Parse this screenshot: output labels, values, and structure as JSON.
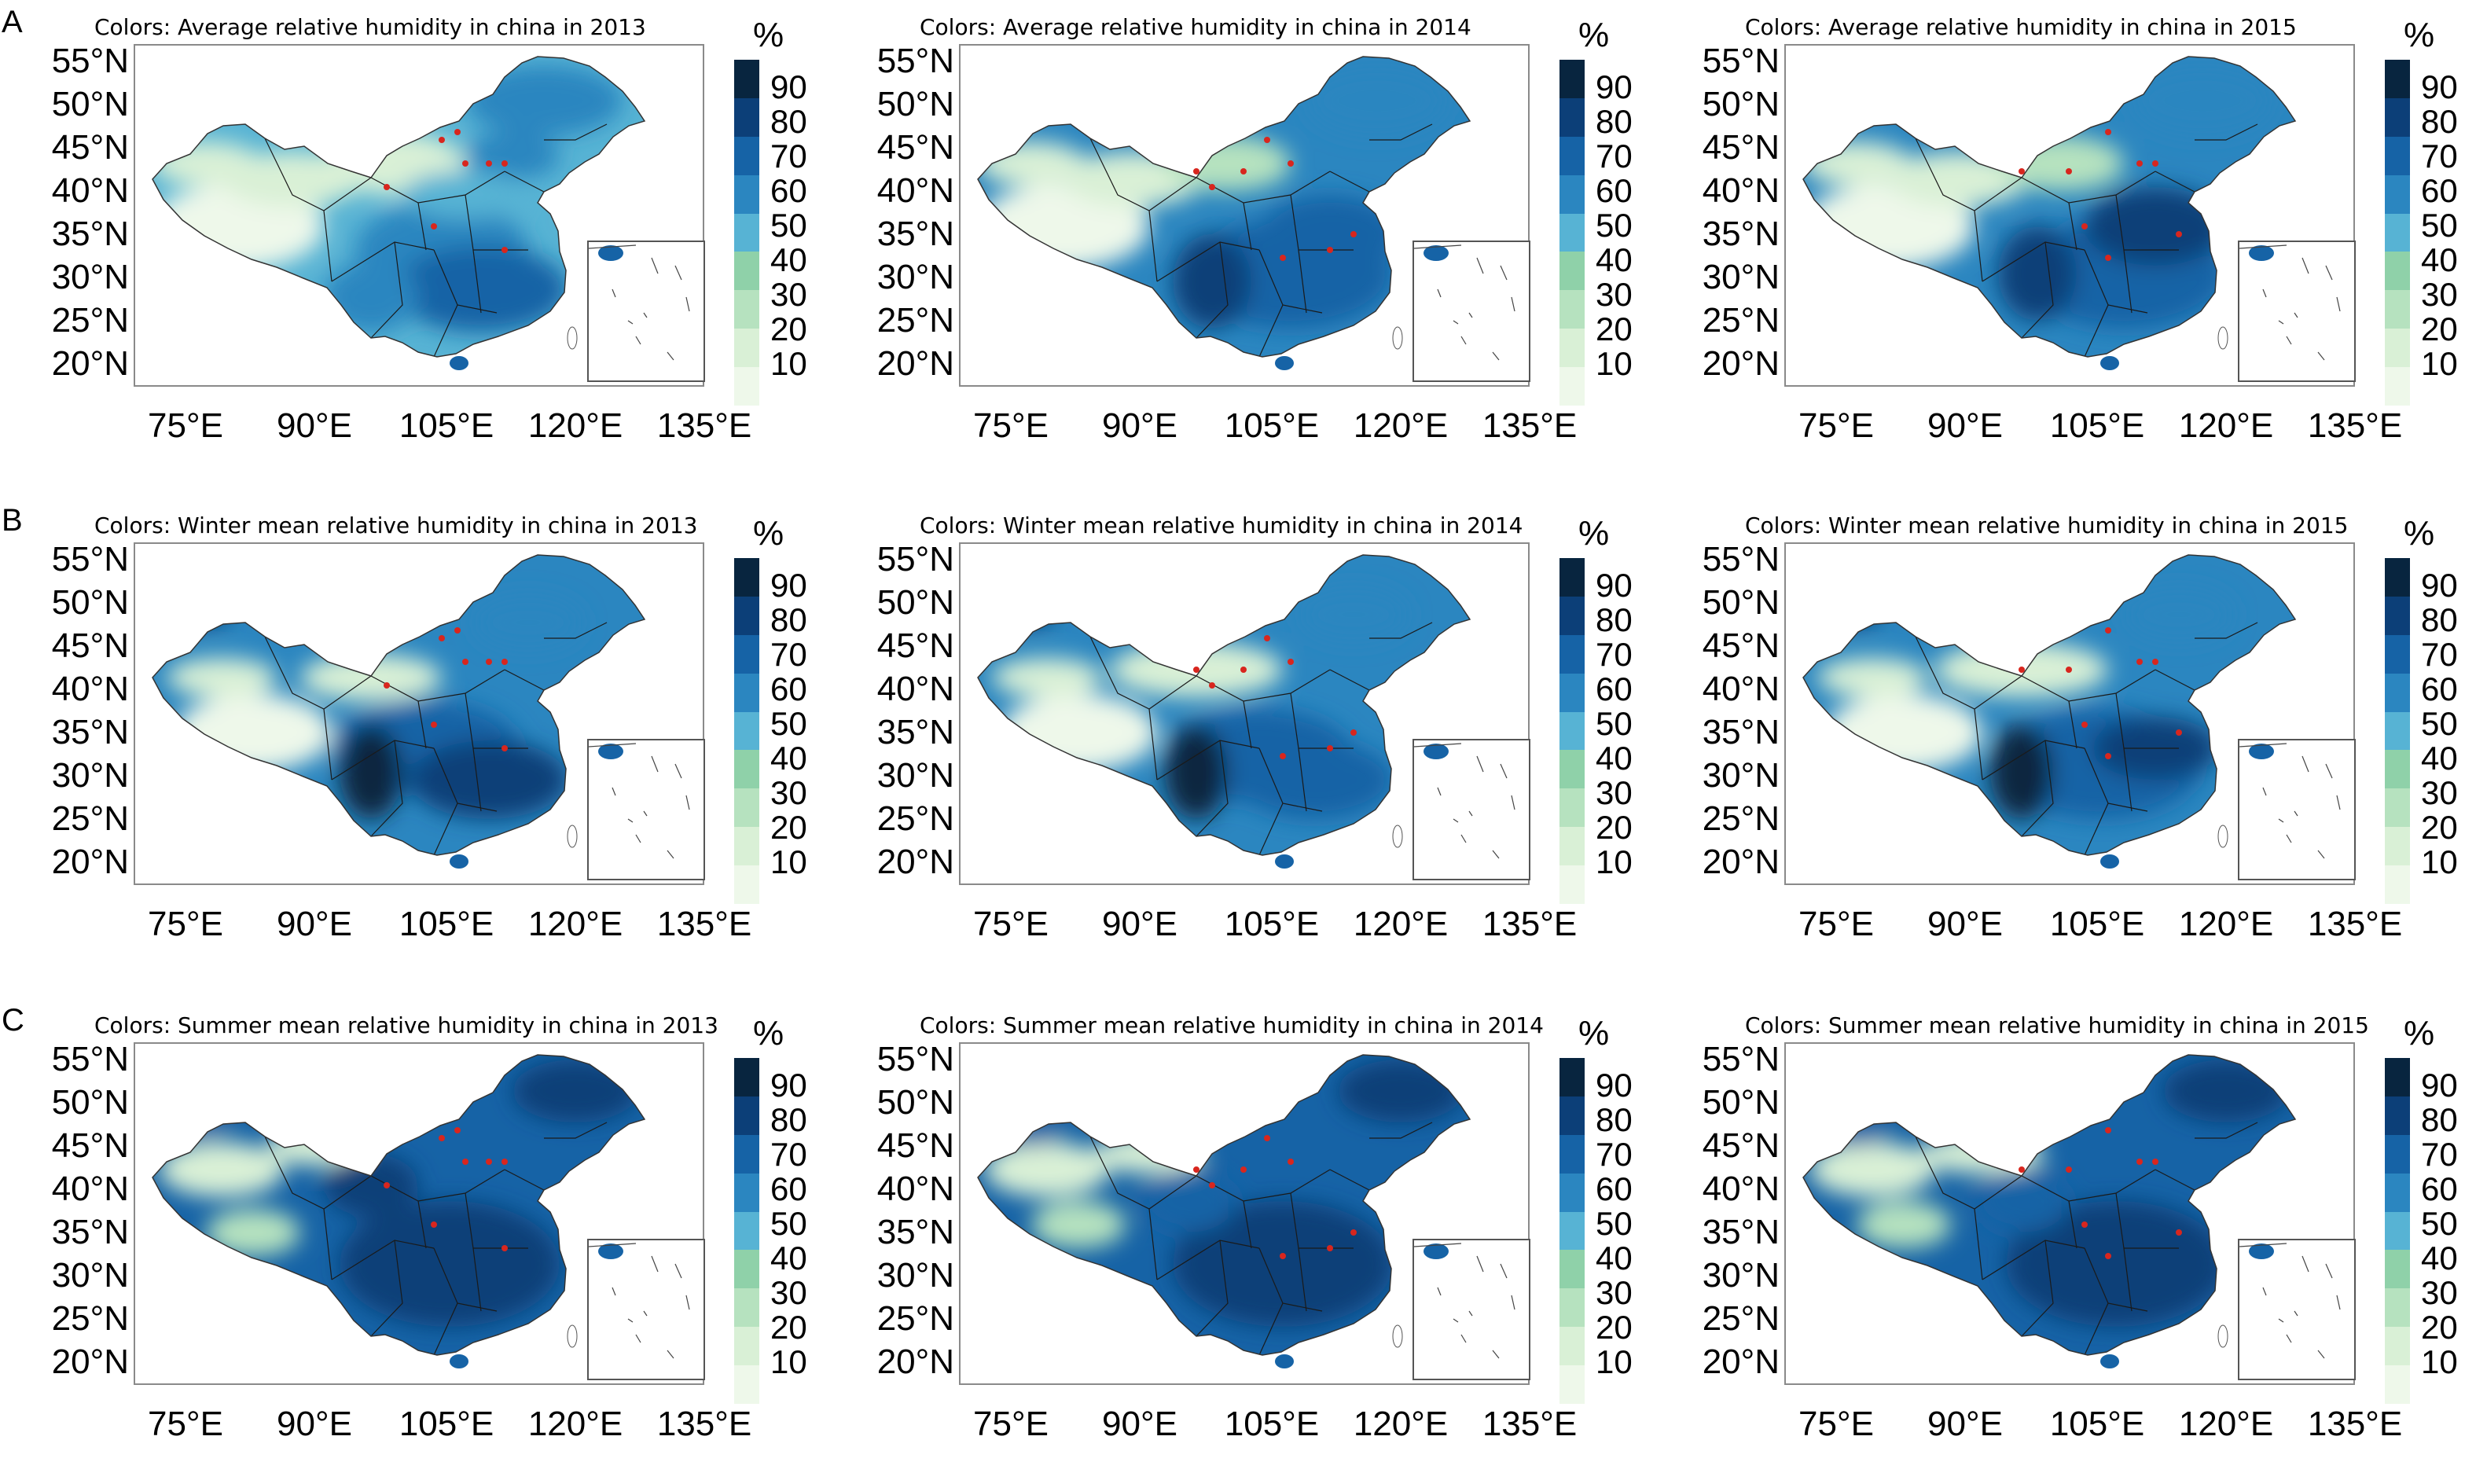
{
  "row_labels": [
    "A",
    "B",
    "C"
  ],
  "unit": "%",
  "lat_labels": [
    "55°N",
    "50°N",
    "45°N",
    "40°N",
    "35°N",
    "30°N",
    "25°N",
    "20°N"
  ],
  "lon_labels": [
    "75°E",
    "90°E",
    "105°E",
    "120°E",
    "135°E"
  ],
  "legend": {
    "labels": [
      "90",
      "80",
      "70",
      "60",
      "50",
      "40",
      "30",
      "20",
      "10"
    ],
    "colors": [
      "#08253f",
      "#0c3f78",
      "#1663a6",
      "#2b86c0",
      "#57b3d4",
      "#8fd1a9",
      "#b6e2bf",
      "#d9f0d6",
      "#eef8ea"
    ]
  },
  "panels": [
    {
      "title": "Colors: Average relative humidity in china in 2013",
      "variant": "avg2013"
    },
    {
      "title": "Colors: Average relative humidity in china in 2014",
      "variant": "avg2014"
    },
    {
      "title": "Colors: Average relative humidity in china in 2015",
      "variant": "avg2015"
    },
    {
      "title": "Colors: Winter mean relative humidity in china in 2013",
      "variant": "win2013"
    },
    {
      "title": "Colors: Winter mean relative humidity in china in 2014",
      "variant": "win2014"
    },
    {
      "title": "Colors: Winter mean relative humidity in china in 2015",
      "variant": "win2015"
    },
    {
      "title": "Colors: Summer mean relative humidity in china in 2013",
      "variant": "sum2013"
    },
    {
      "title": "Colors: Summer mean relative humidity in china in 2014",
      "variant": "sum2014"
    },
    {
      "title": "Colors: Summer mean relative humidity in china in 2015",
      "variant": "sum2015"
    }
  ]
}
